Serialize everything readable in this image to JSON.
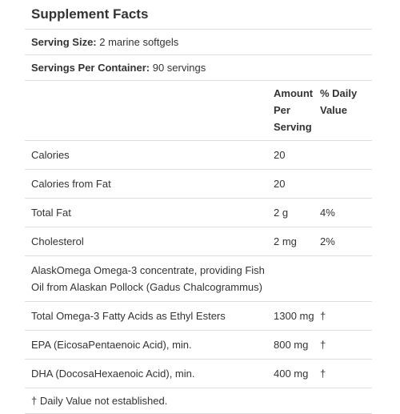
{
  "title": "Supplement Facts",
  "serving_size": {
    "label": "Serving Size:",
    "value": " 2 marine softgels"
  },
  "servings_per_container": {
    "label": "Servings Per Container:",
    "value": " 90 servings"
  },
  "headers": {
    "amount": "Amount Per Serving",
    "daily_value": "% Daily Value"
  },
  "rows": [
    {
      "name": "Calories",
      "amount": "20",
      "dv": ""
    },
    {
      "name": "Calories from Fat",
      "amount": "20",
      "dv": ""
    },
    {
      "name": "Total Fat",
      "amount": "2 g",
      "dv": "4%"
    },
    {
      "name": "Cholesterol",
      "amount": "2 mg",
      "dv": "2%"
    },
    {
      "name": "AlaskOmega Omega-3 concentrate, providing Fish Oil from Alaskan Pollock (Gadus Chalcogrammus)",
      "amount": "",
      "dv": ""
    },
    {
      "name": "Total Omega-3 Fatty Acids as Ethyl Esters",
      "amount": "1300 mg",
      "dv": "†"
    },
    {
      "name": "EPA (EicosaPentaenoic Acid), min.",
      "amount": "800 mg",
      "dv": "†"
    },
    {
      "name": "DHA (DocosaHexaenoic Acid), min.",
      "amount": "400 mg",
      "dv": "†"
    }
  ],
  "footnote": "† Daily Value not established."
}
